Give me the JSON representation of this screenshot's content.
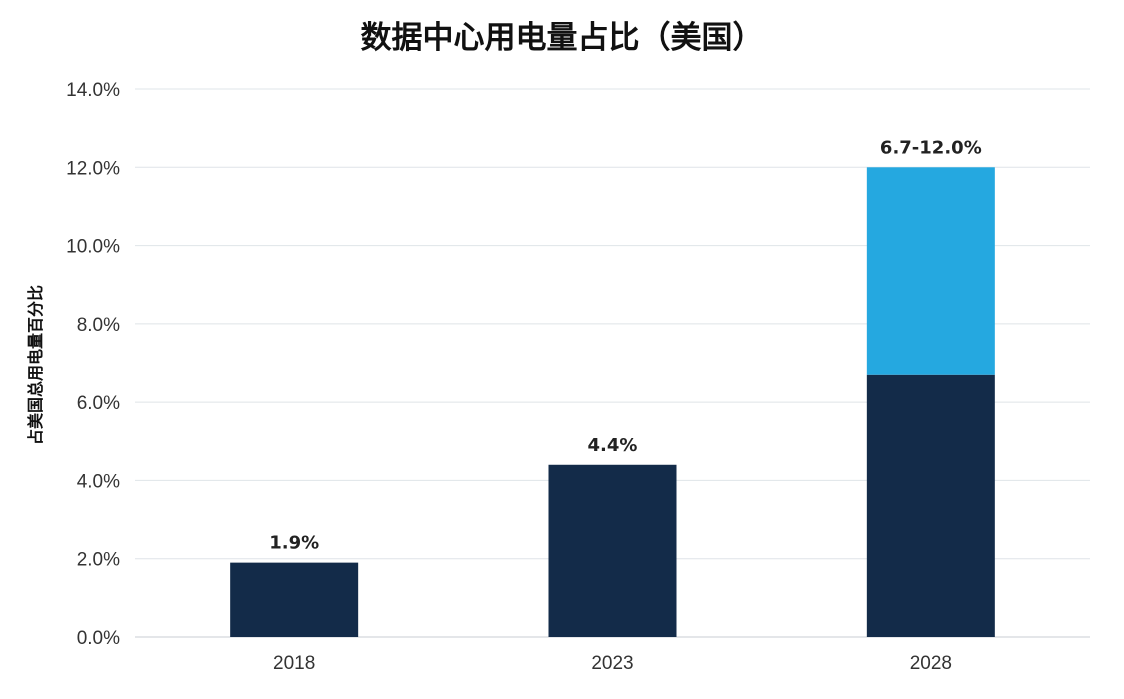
{
  "chart_data": {
    "type": "bar",
    "title": "数据中心用电量占比（美国）",
    "ylabel": "占美国总用电量百分比",
    "xlabel": "",
    "categories": [
      "2018",
      "2023",
      "2028"
    ],
    "series": [
      {
        "values": [
          1.9,
          4.4,
          6.7
        ],
        "color": "#132b49"
      },
      {
        "values": [
          0,
          0,
          5.3
        ],
        "color": "#25a8e0"
      }
    ],
    "data_labels": [
      "1.9%",
      "4.4%",
      "6.7-12.0%"
    ],
    "yticks": [
      "0.0%",
      "2.0%",
      "4.0%",
      "6.0%",
      "8.0%",
      "10.0%",
      "12.0%",
      "14.0%"
    ],
    "ylim": [
      0,
      14
    ],
    "grid": true
  }
}
